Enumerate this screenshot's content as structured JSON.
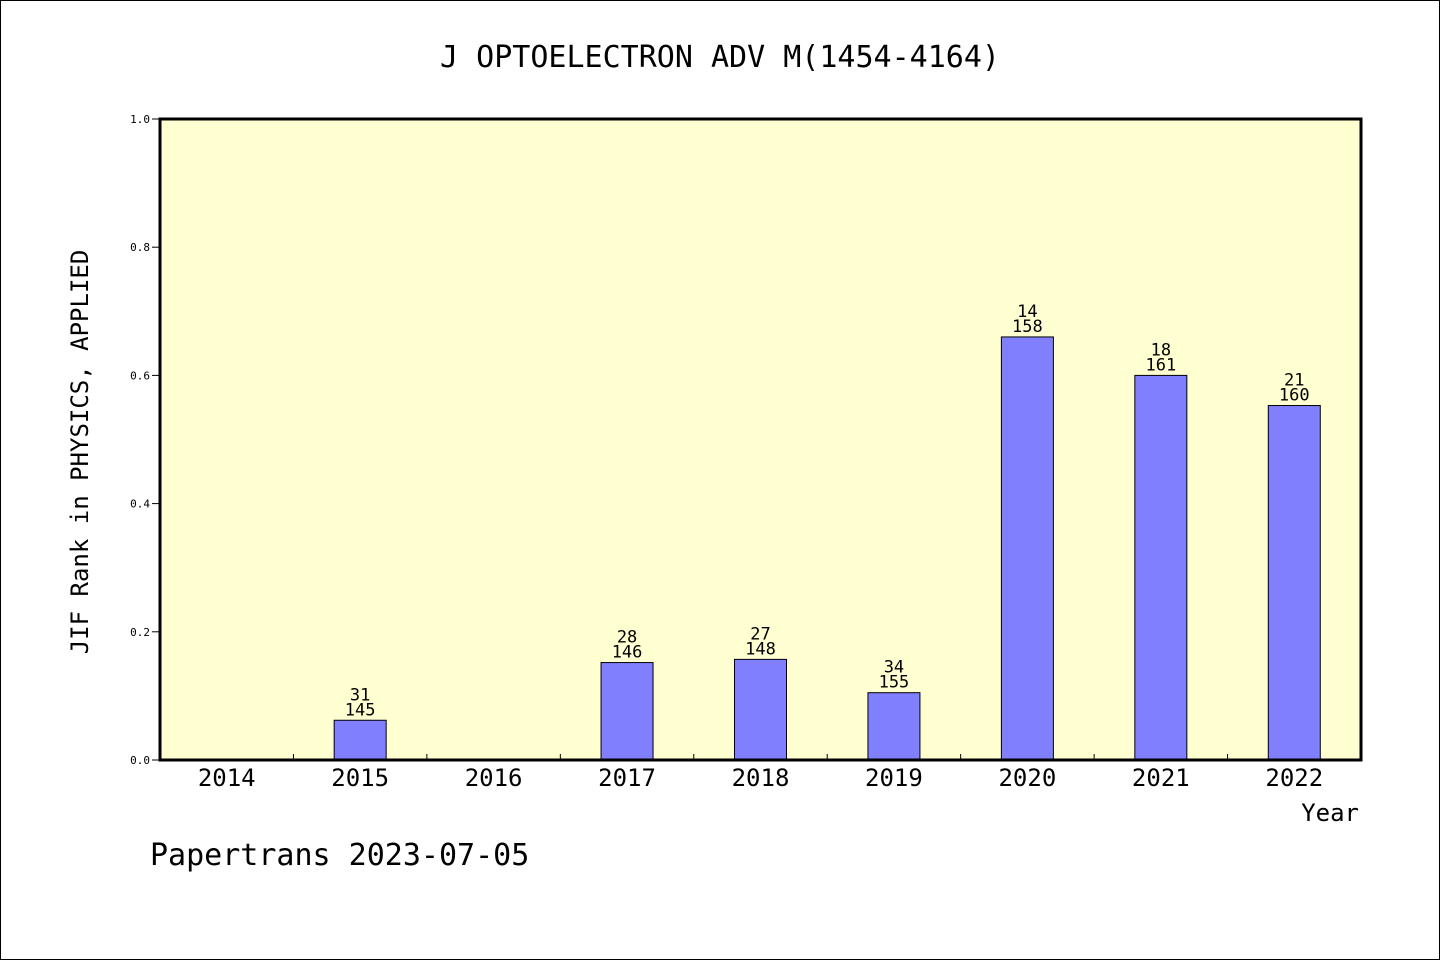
{
  "chart_data": {
    "type": "bar",
    "title": "J OPTOELECTRON ADV M(1454-4164)",
    "xlabel": "Year",
    "ylabel": "JIF Rank in PHYSICS, APPLIED",
    "ylim": [
      0,
      1.0
    ],
    "yticks": [
      "0.0",
      "0.2",
      "0.4",
      "0.6",
      "0.8",
      "1.0"
    ],
    "categories": [
      "2014",
      "2015",
      "2016",
      "2017",
      "2018",
      "2019",
      "2020",
      "2021",
      "2022"
    ],
    "values": [
      null,
      0.062,
      null,
      0.152,
      0.157,
      0.105,
      0.66,
      0.6,
      0.553
    ],
    "rank_labels": [
      null,
      {
        "rank": "31",
        "total": "145"
      },
      null,
      {
        "rank": "28",
        "total": "146"
      },
      {
        "rank": "27",
        "total": "148"
      },
      {
        "rank": "34",
        "total": "155"
      },
      {
        "rank": "14",
        "total": "158"
      },
      {
        "rank": "18",
        "total": "161"
      },
      {
        "rank": "21",
        "total": "160"
      }
    ],
    "grid": false,
    "legend": "none",
    "colors": {
      "plot_background": "#ffffd2",
      "bar_fill": "#8080ff",
      "bar_stroke": "#000000"
    }
  },
  "footer": {
    "credit": "Papertrans 2023-07-05"
  }
}
